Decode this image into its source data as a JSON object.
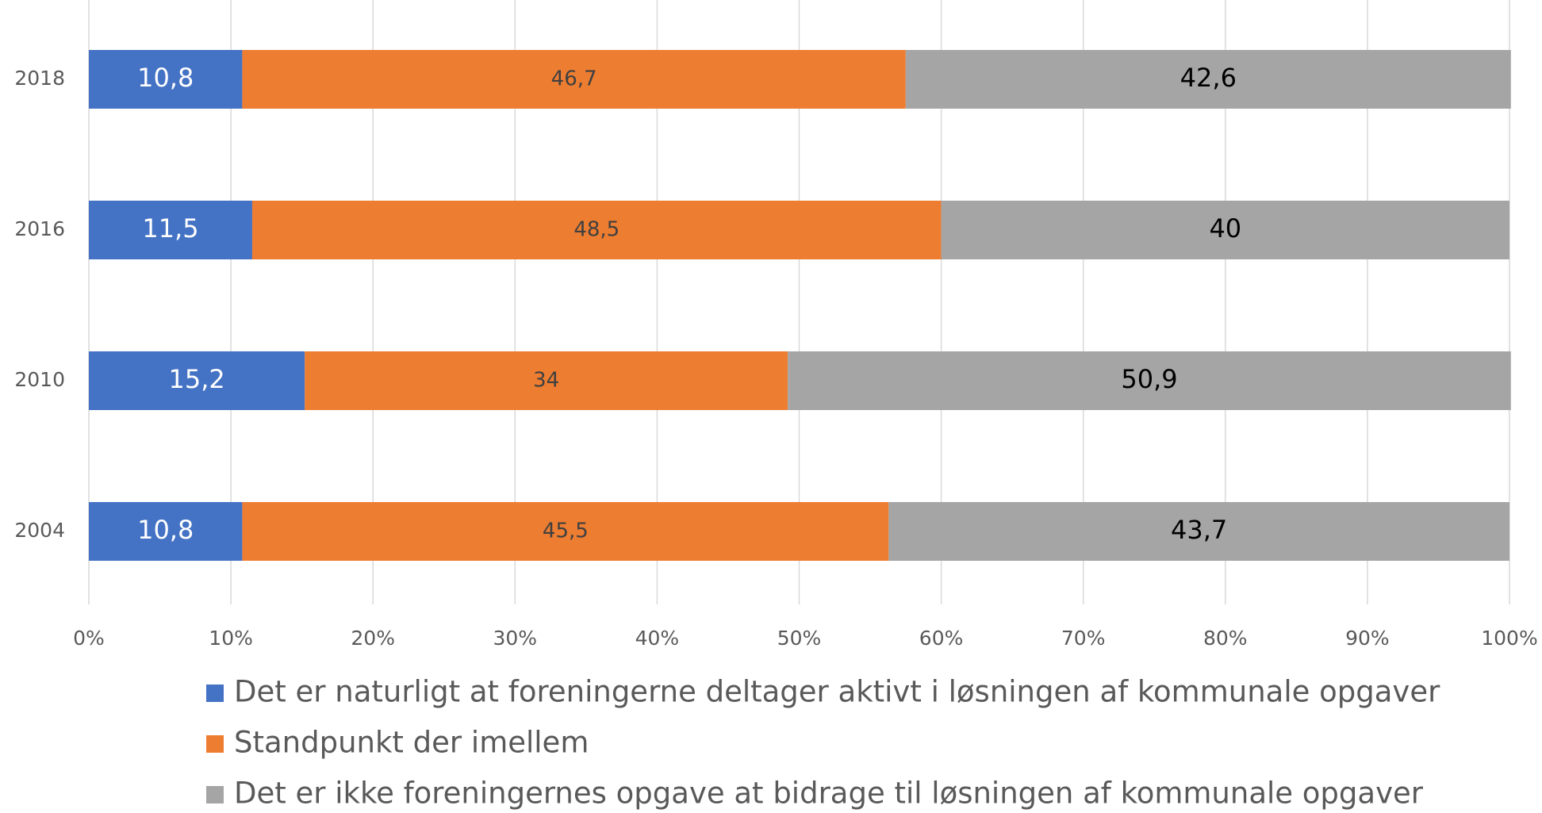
{
  "chart_data": {
    "type": "stacked_barh",
    "categories": [
      "2018",
      "2016",
      "2010",
      "2004"
    ],
    "series": [
      {
        "name": "Det er naturligt at foreningerne deltager aktivt i løsningen af kommunale opgaver",
        "color": "#4472c4",
        "label_color": "#ffffff",
        "values": [
          10.8,
          11.5,
          15.2,
          10.8
        ],
        "value_labels": [
          "10,8",
          "11,5",
          "15,2",
          "10,8"
        ]
      },
      {
        "name": "Standpunkt der imellem",
        "color": "#ed7d31",
        "label_color": "#404040",
        "values": [
          46.7,
          48.5,
          34,
          45.5
        ],
        "value_labels": [
          "46,7",
          "48,5",
          "34",
          "45,5"
        ]
      },
      {
        "name": "Det er ikke foreningernes opgave at bidrage til løsningen af kommunale opgaver",
        "color": "#a5a5a5",
        "label_color": "#000000",
        "values": [
          42.6,
          40,
          50.9,
          43.7
        ],
        "value_labels": [
          "42,6",
          "40",
          "50,9",
          "43,7"
        ]
      }
    ],
    "xlim": [
      0,
      100
    ],
    "xticks": [
      {
        "value": 0,
        "label": "0%"
      },
      {
        "value": 10,
        "label": "10%"
      },
      {
        "value": 20,
        "label": "20%"
      },
      {
        "value": 30,
        "label": "30%"
      },
      {
        "value": 40,
        "label": "40%"
      },
      {
        "value": 50,
        "label": "50%"
      },
      {
        "value": 60,
        "label": "60%"
      },
      {
        "value": 70,
        "label": "70%"
      },
      {
        "value": 80,
        "label": "80%"
      },
      {
        "value": 90,
        "label": "90%"
      },
      {
        "value": 100,
        "label": "100%"
      }
    ],
    "grid": true,
    "legend": "bottom"
  }
}
